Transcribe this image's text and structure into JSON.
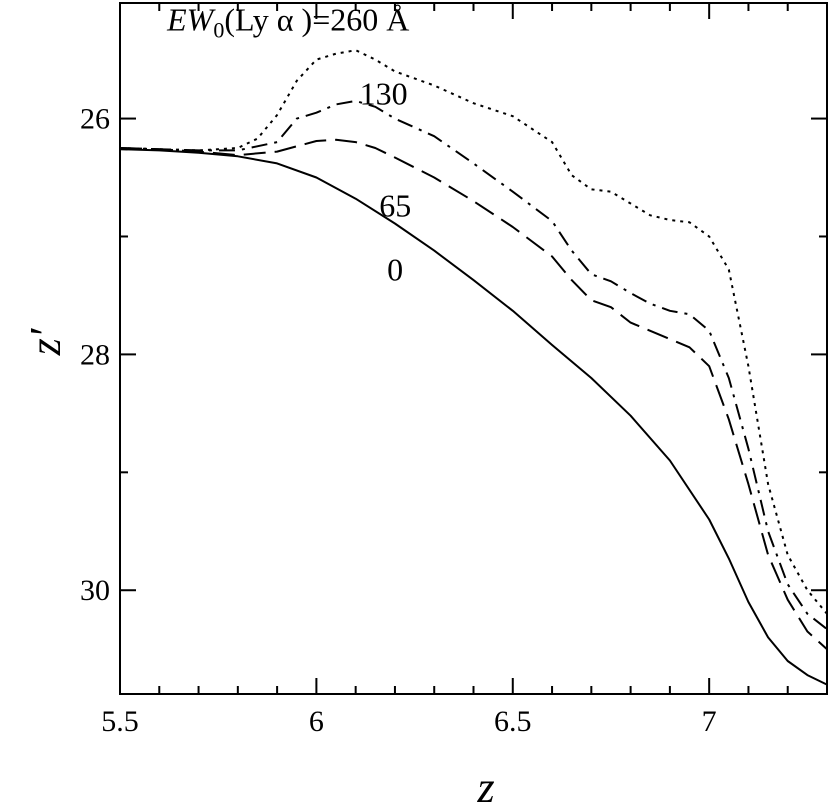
{
  "chart_data": {
    "type": "line",
    "xlabel": "z",
    "ylabel": "z′",
    "xlim": [
      5.5,
      7.3
    ],
    "ylim": [
      30.88,
      25.02
    ],
    "y_inverted": true,
    "grid": false,
    "x_ticks": [
      5.5,
      6,
      6.5,
      7
    ],
    "x_tick_labels": [
      "5.5",
      "6",
      "6.5",
      "7"
    ],
    "y_ticks": [
      26,
      28,
      30
    ],
    "y_tick_labels": [
      "26",
      "28",
      "30"
    ],
    "x_minor_step": 0.1,
    "y_minor_step": 1,
    "series": [
      {
        "label": "0",
        "style": "solid",
        "x": [
          5.5,
          5.6,
          5.7,
          5.8,
          5.9,
          6.0,
          6.1,
          6.2,
          6.3,
          6.4,
          6.5,
          6.6,
          6.7,
          6.8,
          6.9,
          7.0,
          7.05,
          7.1,
          7.15,
          7.2,
          7.25,
          7.3
        ],
        "y": [
          26.26,
          26.27,
          26.29,
          26.32,
          26.38,
          26.5,
          26.68,
          26.89,
          27.12,
          27.37,
          27.63,
          27.92,
          28.2,
          28.52,
          28.9,
          29.4,
          29.73,
          30.1,
          30.4,
          30.6,
          30.72,
          30.8
        ]
      },
      {
        "label": "65",
        "style": "dashed",
        "x": [
          5.5,
          5.6,
          5.7,
          5.8,
          5.9,
          6.0,
          6.05,
          6.1,
          6.15,
          6.2,
          6.3,
          6.4,
          6.5,
          6.6,
          6.65,
          6.7,
          6.75,
          6.8,
          6.85,
          6.9,
          6.95,
          7.0,
          7.05,
          7.1,
          7.15,
          7.2,
          7.25,
          7.3
        ],
        "y": [
          26.25,
          26.26,
          26.28,
          26.31,
          26.28,
          26.19,
          26.18,
          26.2,
          26.25,
          26.33,
          26.5,
          26.7,
          26.92,
          27.17,
          27.37,
          27.54,
          27.6,
          27.73,
          27.8,
          27.87,
          27.94,
          28.1,
          28.55,
          29.1,
          29.7,
          30.08,
          30.35,
          30.5
        ]
      },
      {
        "label": "130",
        "style": "dash-dot",
        "x": [
          5.5,
          5.6,
          5.7,
          5.8,
          5.9,
          5.95,
          6.0,
          6.05,
          6.1,
          6.15,
          6.2,
          6.3,
          6.4,
          6.5,
          6.6,
          6.65,
          6.7,
          6.75,
          6.8,
          6.85,
          6.9,
          6.95,
          7.0,
          7.05,
          7.1,
          7.15,
          7.2,
          7.25,
          7.3
        ],
        "y": [
          26.25,
          26.26,
          26.27,
          26.27,
          26.2,
          26.0,
          25.95,
          25.88,
          25.85,
          25.9,
          26.0,
          26.15,
          26.38,
          26.62,
          26.87,
          27.12,
          27.32,
          27.38,
          27.48,
          27.57,
          27.63,
          27.66,
          27.8,
          28.2,
          28.8,
          29.5,
          29.95,
          30.2,
          30.33
        ]
      },
      {
        "label": "EW₀(Lyα)=260 Å",
        "style": "dotted",
        "x": [
          5.5,
          5.6,
          5.7,
          5.8,
          5.85,
          5.9,
          5.95,
          6.0,
          6.05,
          6.1,
          6.15,
          6.2,
          6.3,
          6.4,
          6.5,
          6.6,
          6.65,
          6.7,
          6.75,
          6.8,
          6.85,
          6.9,
          6.95,
          7.0,
          7.05,
          7.1,
          7.15,
          7.2,
          7.25,
          7.3
        ],
        "y": [
          26.25,
          26.26,
          26.27,
          26.25,
          26.17,
          25.97,
          25.68,
          25.5,
          25.45,
          25.42,
          25.5,
          25.6,
          25.72,
          25.87,
          25.98,
          26.2,
          26.48,
          26.6,
          26.62,
          26.72,
          26.82,
          26.86,
          26.88,
          27.0,
          27.28,
          28.1,
          29.1,
          29.7,
          30.0,
          30.2
        ]
      }
    ],
    "annotations": [
      {
        "text_prefix": "EW",
        "text_sub": "0",
        "text_suffix": "(Ly α )=260 Å",
        "x": 5.62,
        "y": 25.15
      },
      {
        "text": "130",
        "x": 6.11,
        "y": 25.78
      },
      {
        "text": "65",
        "x": 6.16,
        "y": 26.73
      },
      {
        "text": "0",
        "x": 6.18,
        "y": 27.27
      }
    ]
  }
}
